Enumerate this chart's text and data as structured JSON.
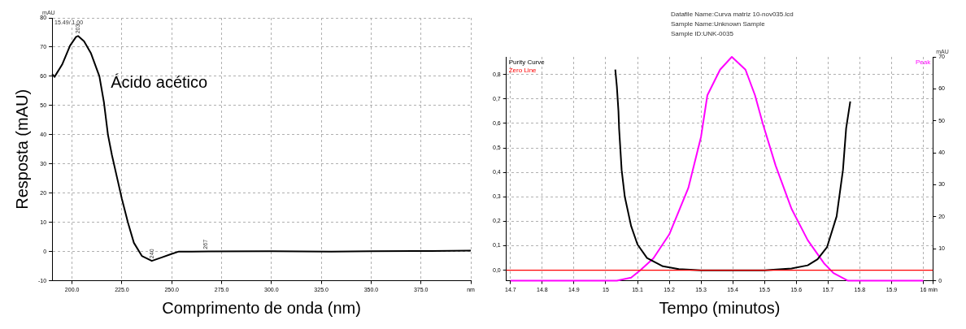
{
  "chart_data": [
    {
      "type": "line",
      "xlabel": "Comprimento de onda (nm)",
      "ylabel": "Resposta (mAU)",
      "xlim": [
        190,
        400
      ],
      "xticks": [
        {
          "value": 200,
          "label": "200.0"
        },
        {
          "value": 225,
          "label": "225.0"
        },
        {
          "value": 250,
          "label": "250.0"
        },
        {
          "value": 275,
          "label": "275.0"
        },
        {
          "value": 300,
          "label": "300.0"
        },
        {
          "value": 325,
          "label": "325.0"
        },
        {
          "value": 350,
          "label": "350.0"
        },
        {
          "value": 375,
          "label": "375.0"
        },
        {
          "value": 400,
          "label": "nm"
        }
      ],
      "ylim": [
        -10,
        80
      ],
      "yticks": [
        -10,
        0,
        10,
        20,
        30,
        40,
        50,
        60,
        70,
        80
      ],
      "grid": true,
      "legend": false,
      "marker": "none",
      "line_style": "solid",
      "series": [
        {
          "color": "#000000",
          "x": [
            190,
            191.2,
            195,
            199,
            202,
            203,
            206,
            209.4,
            213.7,
            216,
            218,
            220,
            223,
            225,
            228,
            231,
            235,
            240,
            245,
            250,
            253.6,
            260,
            300,
            330,
            350,
            380,
            400
          ],
          "values": [
            60.8,
            59.8,
            64,
            70.5,
            73.5,
            73.8,
            72,
            68,
            60,
            51,
            40,
            33,
            24,
            18,
            10,
            3,
            -1.5,
            -3.2,
            -2,
            -0.8,
            0,
            0,
            0.1,
            0,
            0.1,
            0.2,
            0.3
          ]
        }
      ],
      "annotations": [
        "mAU",
        "15.49/ 1.00",
        "Ácido acético",
        {
          "text": "203",
          "x": 203,
          "y": 73.8
        },
        {
          "text": "240",
          "x": 240,
          "y": -3.2
        },
        {
          "text": "267",
          "x": 267,
          "y": 0
        }
      ]
    },
    {
      "type": "line",
      "xlabel": "Tempo (minutos)",
      "xlim": [
        14.687,
        16.03
      ],
      "xticks": [
        14.7,
        14.8,
        14.9,
        15,
        15.1,
        15.2,
        15.3,
        15.4,
        15.5,
        15.6,
        15.7,
        15.8,
        15.9,
        16,
        {
          "value": 16.03,
          "label": "min"
        }
      ],
      "ylim": [
        -0.043,
        0.872
      ],
      "yticks": [
        {
          "value": 0,
          "label": "0,0"
        },
        {
          "value": 0.1,
          "label": "0,1"
        },
        {
          "value": 0.2,
          "label": "0,2"
        },
        {
          "value": 0.3,
          "label": "0,3"
        },
        {
          "value": 0.4,
          "label": "0,4"
        },
        {
          "value": 0.5,
          "label": "0,5"
        },
        {
          "value": 0.6,
          "label": "0,6"
        },
        {
          "value": 0.7,
          "label": "0,7"
        },
        {
          "value": 0.8,
          "label": "0,8"
        }
      ],
      "y2lim": [
        0,
        70
      ],
      "y2ticks": [
        0,
        10,
        20,
        30,
        40,
        50,
        60,
        70
      ],
      "grid": true,
      "legend": "top left",
      "marker": "none",
      "line_style": "solid",
      "series": [
        {
          "name": "Purity Curve",
          "color": "#000000",
          "x": [
            15.03,
            15.035,
            15.04,
            15.042,
            15.05,
            15.06,
            15.08,
            15.1,
            15.13,
            15.18,
            15.23,
            15.3,
            15.5,
            15.585,
            15.636,
            15.667,
            15.697,
            15.727,
            15.747,
            15.757,
            15.77
          ],
          "values": [
            0.82,
            0.75,
            0.65,
            0.58,
            0.41,
            0.3,
            0.18,
            0.105,
            0.05,
            0.016,
            0.005,
            0,
            0,
            0.007,
            0.02,
            0.045,
            0.095,
            0.22,
            0.41,
            0.58,
            0.69
          ]
        },
        {
          "name": "Peak",
          "color": "#ff00ff",
          "axis": "y2",
          "x": [
            14.7,
            15.035,
            15.08,
            15.11,
            15.15,
            15.2,
            15.26,
            15.3,
            15.32,
            15.36,
            15.397,
            15.44,
            15.47,
            15.495,
            15.535,
            15.585,
            15.636,
            15.687,
            15.717,
            15.763,
            16.0
          ],
          "values": [
            0,
            0,
            1,
            3.4,
            7,
            14.5,
            29,
            45,
            58,
            66,
            70,
            66,
            58,
            49,
            36,
            22.5,
            12.7,
            5.5,
            2.4,
            0,
            0
          ]
        }
      ],
      "ref_lines": [
        {
          "axis": "y",
          "value": 0,
          "label": "Zero Line",
          "color": "#ff0000"
        }
      ],
      "annotations": [
        "Datafile Name:Curva matriz 10-nov035.lcd",
        "Sample Name:Unknown Sample",
        "Sample ID:UNK-0035",
        "mAU"
      ]
    }
  ]
}
